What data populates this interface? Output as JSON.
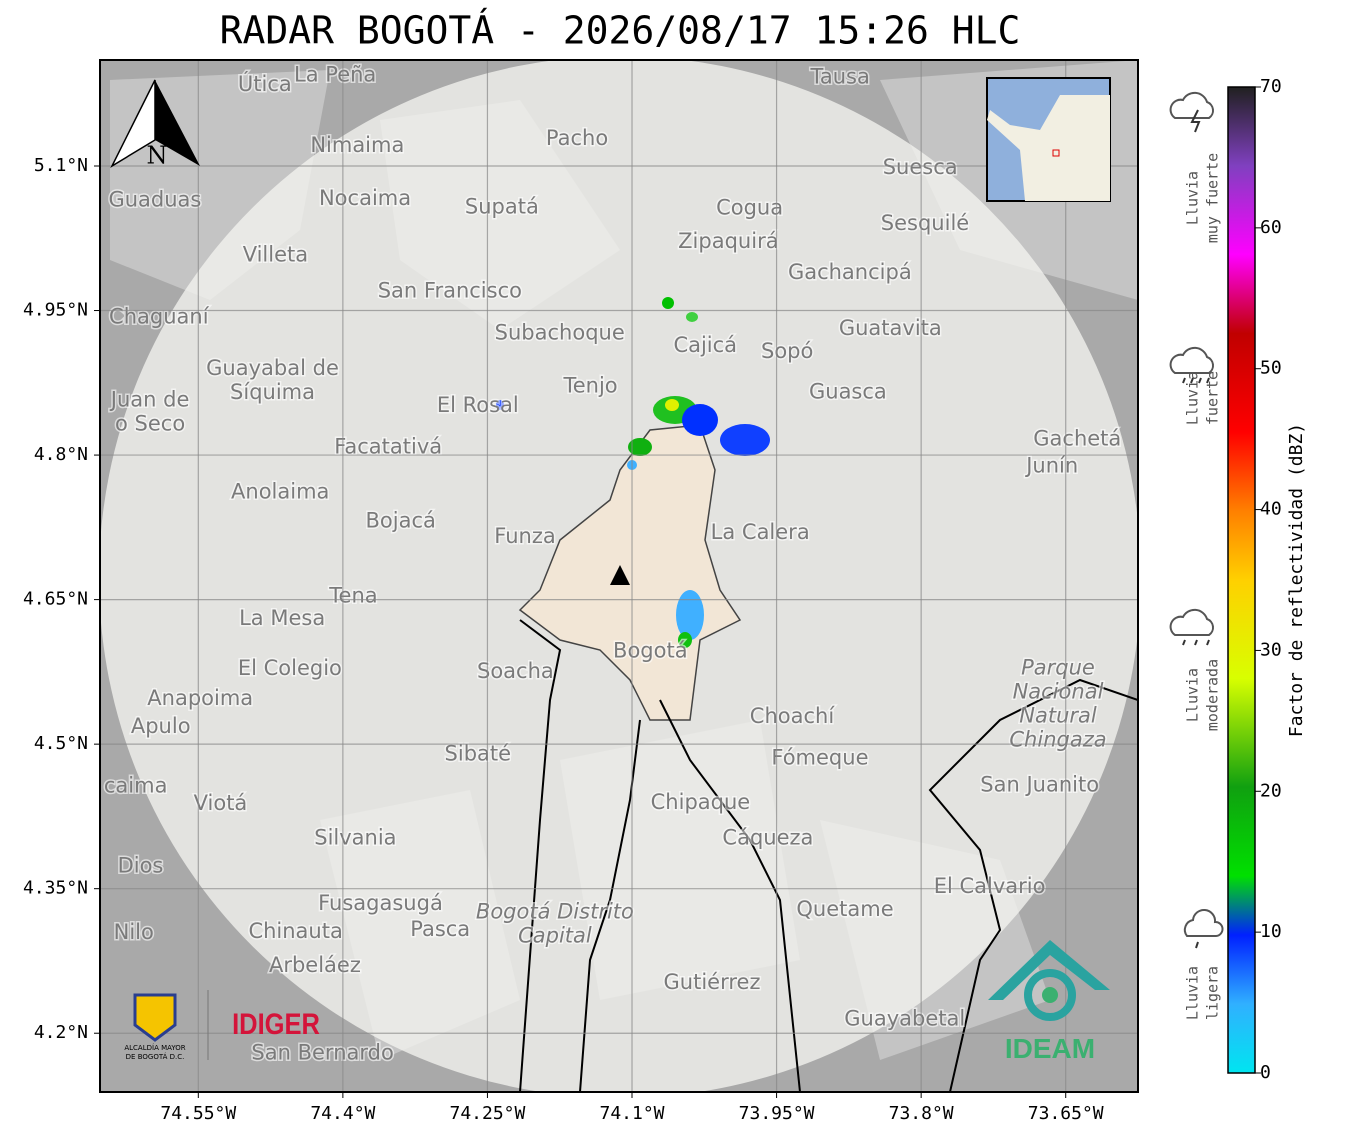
{
  "title": "RADAR BOGOTÁ - 2026/08/17 15:26 HLC",
  "map": {
    "xlim": [
      -74.652,
      -73.575
    ],
    "ylim": [
      4.139,
      5.21
    ],
    "xticks": [
      {
        "value": -74.55,
        "label": "74.55°W"
      },
      {
        "value": -74.4,
        "label": "74.4°W"
      },
      {
        "value": -74.25,
        "label": "74.25°W"
      },
      {
        "value": -74.1,
        "label": "74.1°W"
      },
      {
        "value": -73.95,
        "label": "73.95°W"
      },
      {
        "value": -73.8,
        "label": "73.8°W"
      },
      {
        "value": -73.65,
        "label": "73.65°W"
      }
    ],
    "yticks": [
      {
        "value": 5.1,
        "label": "5.1°N"
      },
      {
        "value": 4.95,
        "label": "4.95°N"
      },
      {
        "value": 4.8,
        "label": "4.8°N"
      },
      {
        "value": 4.65,
        "label": "4.65°N"
      },
      {
        "value": 4.5,
        "label": "4.5°N"
      },
      {
        "value": 4.35,
        "label": "4.35°N"
      },
      {
        "value": 4.2,
        "label": "4.2°N"
      }
    ],
    "grid": true,
    "north_label": "N",
    "places": [
      {
        "lines": [
          "La Peña"
        ],
        "lon": -74.408,
        "lat": 5.194
      },
      {
        "lines": [
          "Útica"
        ],
        "lon": -74.481,
        "lat": 5.184
      },
      {
        "lines": [
          "Tausa"
        ],
        "lon": -73.884,
        "lat": 5.192
      },
      {
        "lines": [
          "Pacho"
        ],
        "lon": -74.157,
        "lat": 5.128
      },
      {
        "lines": [
          "Nimaima"
        ],
        "lon": -74.385,
        "lat": 5.121
      },
      {
        "lines": [
          "Guaduas"
        ],
        "lon": -74.595,
        "lat": 5.064
      },
      {
        "lines": [
          "Nocaima"
        ],
        "lon": -74.377,
        "lat": 5.066
      },
      {
        "lines": [
          "Supatá"
        ],
        "lon": -74.235,
        "lat": 5.057
      },
      {
        "lines": [
          "Suesca"
        ],
        "lon": -73.801,
        "lat": 5.098
      },
      {
        "lines": [
          "Cogua"
        ],
        "lon": -73.978,
        "lat": 5.056
      },
      {
        "lines": [
          "Sesquilé"
        ],
        "lon": -73.796,
        "lat": 5.04
      },
      {
        "lines": [
          "Zipaquirá"
        ],
        "lon": -74.0,
        "lat": 5.021
      },
      {
        "lines": [
          "Villeta"
        ],
        "lon": -74.47,
        "lat": 5.007
      },
      {
        "lines": [
          "Gachancipá"
        ],
        "lon": -73.874,
        "lat": 4.989
      },
      {
        "lines": [
          "San Francisco"
        ],
        "lon": -74.289,
        "lat": 4.97
      },
      {
        "lines": [
          "Chaguaní"
        ],
        "lon": -74.591,
        "lat": 4.943
      },
      {
        "lines": [
          "Guatavita"
        ],
        "lon": -73.832,
        "lat": 4.931
      },
      {
        "lines": [
          "Subachoque"
        ],
        "lon": -74.175,
        "lat": 4.926
      },
      {
        "lines": [
          "Cajicá"
        ],
        "lon": -74.024,
        "lat": 4.913
      },
      {
        "lines": [
          "Sopó"
        ],
        "lon": -73.939,
        "lat": 4.907
      },
      {
        "lines": [
          "Guayabal de",
          "Síquima"
        ],
        "lon": -74.473,
        "lat": 4.877
      },
      {
        "lines": [
          "Tenjo"
        ],
        "lon": -74.143,
        "lat": 4.871
      },
      {
        "lines": [
          "Juan de",
          "o Seco"
        ],
        "lon": -74.6,
        "lat": 4.844
      },
      {
        "lines": [
          "El Rosal"
        ],
        "lon": -74.26,
        "lat": 4.851
      },
      {
        "lines": [
          "Guasca"
        ],
        "lon": -73.876,
        "lat": 4.865
      },
      {
        "lines": [
          "Facatativá"
        ],
        "lon": -74.353,
        "lat": 4.808
      },
      {
        "lines": [
          "Gachetá"
        ],
        "lon": -73.638,
        "lat": 4.816
      },
      {
        "lines": [
          "Junín"
        ],
        "lon": -73.664,
        "lat": 4.788
      },
      {
        "lines": [
          "Anolaima"
        ],
        "lon": -74.465,
        "lat": 4.761
      },
      {
        "lines": [
          "Bojacá"
        ],
        "lon": -74.34,
        "lat": 4.731
      },
      {
        "lines": [
          "Funza"
        ],
        "lon": -74.211,
        "lat": 4.715
      },
      {
        "lines": [
          "La Calera"
        ],
        "lon": -73.967,
        "lat": 4.719
      },
      {
        "lines": [
          "Tena"
        ],
        "lon": -74.389,
        "lat": 4.653
      },
      {
        "lines": [
          "La Mesa"
        ],
        "lon": -74.463,
        "lat": 4.63
      },
      {
        "lines": [
          "Parque",
          "Nacional",
          "Natural",
          "Chingaza"
        ],
        "lon": -73.658,
        "lat": 4.541,
        "italic": true
      },
      {
        "lines": [
          "Bogotá"
        ],
        "lon": -74.081,
        "lat": 4.596
      },
      {
        "lines": [
          "Soacha"
        ],
        "lon": -74.221,
        "lat": 4.575
      },
      {
        "lines": [
          "El Colegio"
        ],
        "lon": -74.455,
        "lat": 4.578
      },
      {
        "lines": [
          "Anapoima"
        ],
        "lon": -74.548,
        "lat": 4.547
      },
      {
        "lines": [
          "Apulo"
        ],
        "lon": -74.589,
        "lat": 4.518
      },
      {
        "lines": [
          "Choachí"
        ],
        "lon": -73.934,
        "lat": 4.528
      },
      {
        "lines": [
          "Fómeque"
        ],
        "lon": -73.905,
        "lat": 4.485
      },
      {
        "lines": [
          "Sibaté"
        ],
        "lon": -74.26,
        "lat": 4.489
      },
      {
        "lines": [
          "San Juanito"
        ],
        "lon": -73.677,
        "lat": 4.457
      },
      {
        "lines": [
          "Viotá"
        ],
        "lon": -74.527,
        "lat": 4.438
      },
      {
        "lines": [
          "caima"
        ],
        "lon": -74.615,
        "lat": 4.456
      },
      {
        "lines": [
          "Chipaque"
        ],
        "lon": -74.029,
        "lat": 4.439
      },
      {
        "lines": [
          "Silvania"
        ],
        "lon": -74.387,
        "lat": 4.402
      },
      {
        "lines": [
          "Cáqueza"
        ],
        "lon": -73.959,
        "lat": 4.402
      },
      {
        "lines": [
          "Dios"
        ],
        "lon": -74.61,
        "lat": 4.373
      },
      {
        "lines": [
          "El Calvario"
        ],
        "lon": -73.729,
        "lat": 4.352
      },
      {
        "lines": [
          "Fusagasugá"
        ],
        "lon": -74.361,
        "lat": 4.334
      },
      {
        "lines": [
          "Bogotá Distrito",
          "Capital"
        ],
        "lon": -74.18,
        "lat": 4.313,
        "italic": true
      },
      {
        "lines": [
          "Quetame"
        ],
        "lon": -73.879,
        "lat": 4.328
      },
      {
        "lines": [
          "Chinauta"
        ],
        "lon": -74.449,
        "lat": 4.305
      },
      {
        "lines": [
          "Pasca"
        ],
        "lon": -74.299,
        "lat": 4.307
      },
      {
        "lines": [
          "Nilo"
        ],
        "lon": -74.617,
        "lat": 4.304
      },
      {
        "lines": [
          "Arbeláez"
        ],
        "lon": -74.429,
        "lat": 4.27
      },
      {
        "lines": [
          "Gutiérrez"
        ],
        "lon": -74.017,
        "lat": 4.252
      },
      {
        "lines": [
          "Guayabetal"
        ],
        "lon": -73.817,
        "lat": 4.214
      },
      {
        "lines": [
          "San Bernardo"
        ],
        "lon": -74.421,
        "lat": 4.179
      }
    ]
  },
  "colorbar": {
    "label": "Factor de reflectividad (dBZ)",
    "lim": [
      0,
      70
    ],
    "ticks": [
      0,
      10,
      20,
      30,
      40,
      50,
      60,
      70
    ]
  },
  "rain_levels": [
    {
      "lines": [
        "Lluvia",
        "muy fuerte"
      ]
    },
    {
      "lines": [
        "Lluvia",
        "fuerte"
      ]
    },
    {
      "lines": [
        "Lluvia",
        "moderada"
      ]
    },
    {
      "lines": [
        "Lluvia",
        "ligera"
      ]
    }
  ],
  "logos": {
    "alcaldia": [
      "ALCALDÍA MAYOR",
      "DE BOGOTÁ D.C."
    ],
    "idiger": "IDIGER",
    "ideam": "IDEAM"
  }
}
